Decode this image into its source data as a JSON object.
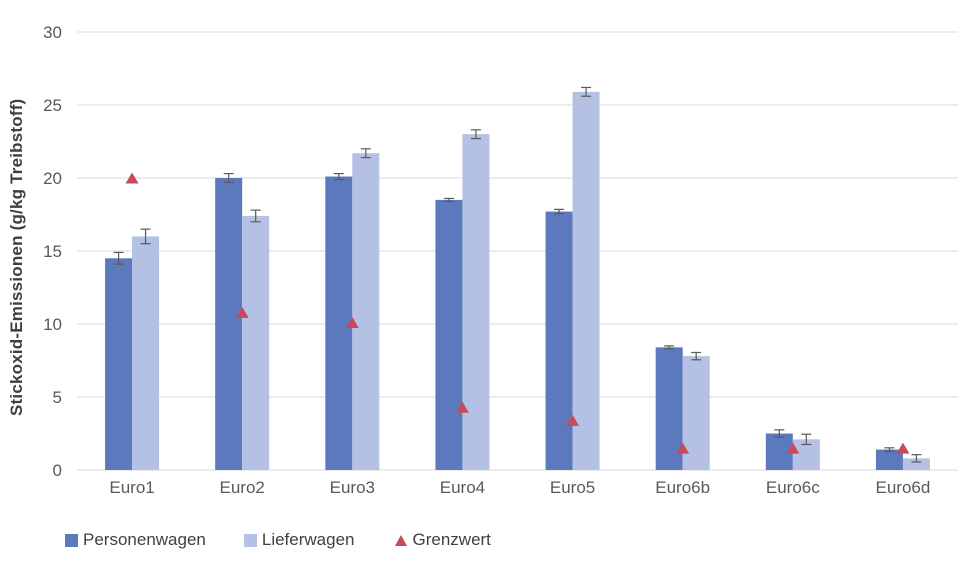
{
  "chart_data": {
    "type": "bar",
    "title": "",
    "categories": [
      "Euro1",
      "Euro2",
      "Euro3",
      "Euro4",
      "Euro5",
      "Euro6b",
      "Euro6c",
      "Euro6d"
    ],
    "series": [
      {
        "name": "Personenwagen",
        "kind": "bar",
        "color": "#5b79bc",
        "values": [
          14.5,
          20.0,
          20.1,
          18.5,
          17.7,
          8.4,
          2.5,
          1.4
        ],
        "errors": [
          0.4,
          0.3,
          0.2,
          0.1,
          0.15,
          0.1,
          0.25,
          0.12
        ]
      },
      {
        "name": "Lieferwagen",
        "kind": "bar",
        "color": "#b4c1e4",
        "values": [
          16.0,
          17.4,
          21.7,
          23.0,
          25.9,
          7.8,
          2.1,
          0.8
        ],
        "errors": [
          0.5,
          0.4,
          0.3,
          0.3,
          0.3,
          0.25,
          0.35,
          0.25
        ]
      },
      {
        "name": "Grenzwert",
        "kind": "triangle-marker",
        "color": "#c64a58",
        "values": [
          20.0,
          10.8,
          10.1,
          4.3,
          3.4,
          1.5,
          1.5,
          1.5
        ]
      }
    ],
    "ylabel": "Stickoxid-Emissionen (g/kg Treibstoff)",
    "xlabel": "",
    "ylim": [
      0,
      30
    ],
    "yticks": [
      0,
      5,
      10,
      15,
      20,
      25,
      30
    ],
    "grid": true,
    "legend_position": "bottom",
    "colors": {
      "gridline": "#d9d9d9",
      "axis_line": "#d9d9d9",
      "error_bar": "#595959",
      "tick_label": "#595959",
      "category_label": "#595959",
      "axis_title": "#3f3f3f",
      "legend_text": "#404040",
      "background": "#ffffff"
    }
  }
}
